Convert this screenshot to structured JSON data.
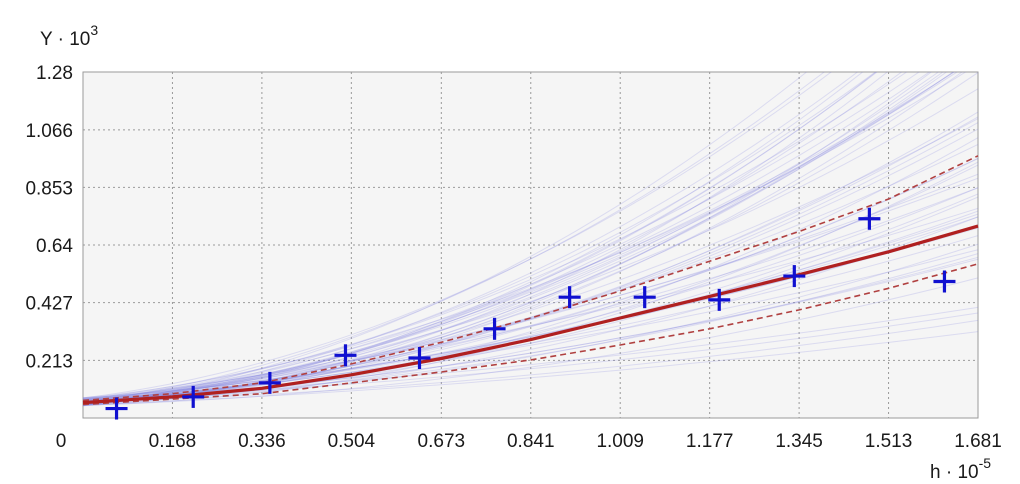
{
  "chart_data": {
    "type": "scatter",
    "title": "",
    "y_axis_label": {
      "base": "Y · 10",
      "exponent": "3"
    },
    "x_axis_label": {
      "base": "h · 10",
      "exponent": "-5"
    },
    "xlim": [
      0,
      1.681
    ],
    "ylim": [
      0,
      1.28
    ],
    "x_ticks": [
      "0",
      "0.168",
      "0.336",
      "0.504",
      "0.673",
      "0.841",
      "1.009",
      "1.177",
      "1.345",
      "1.513",
      "1.681"
    ],
    "y_ticks": [
      "0.213",
      "0.427",
      "0.64",
      "0.853",
      "1.066",
      "1.28"
    ],
    "grid": true,
    "legend": "none",
    "colors": {
      "points": "#1010d0",
      "fit": "#b02020",
      "bands": "#b04040",
      "ensemble": "#8080e0",
      "plot_bg": "#f5f5f5",
      "grid": "#9a9a9a"
    },
    "series": [
      {
        "kind": "points",
        "marker": "plus",
        "x": [
          0.063,
          0.207,
          0.351,
          0.493,
          0.632,
          0.773,
          0.914,
          1.055,
          1.195,
          1.336,
          1.477,
          1.618
        ],
        "y": [
          0.035,
          0.078,
          0.13,
          0.232,
          0.222,
          0.33,
          0.447,
          0.447,
          0.437,
          0.525,
          0.737,
          0.505
        ]
      },
      {
        "kind": "fit",
        "x": [
          0,
          0.168,
          0.336,
          0.504,
          0.673,
          0.841,
          1.009,
          1.177,
          1.345,
          1.513,
          1.681
        ],
        "y": [
          0.057,
          0.078,
          0.11,
          0.16,
          0.22,
          0.29,
          0.37,
          0.45,
          0.53,
          0.615,
          0.71
        ]
      },
      {
        "kind": "band-upper",
        "x": [
          0,
          0.168,
          0.336,
          0.504,
          0.673,
          0.841,
          1.009,
          1.177,
          1.345,
          1.513,
          1.681
        ],
        "y": [
          0.065,
          0.09,
          0.13,
          0.2,
          0.28,
          0.37,
          0.47,
          0.58,
          0.69,
          0.81,
          0.97
        ]
      },
      {
        "kind": "band-lower",
        "x": [
          0,
          0.168,
          0.336,
          0.504,
          0.673,
          0.841,
          1.009,
          1.177,
          1.345,
          1.513,
          1.681
        ],
        "y": [
          0.05,
          0.07,
          0.09,
          0.13,
          0.17,
          0.215,
          0.27,
          0.33,
          0.4,
          0.48,
          0.57
        ]
      }
    ],
    "ensemble_curves": 60
  }
}
